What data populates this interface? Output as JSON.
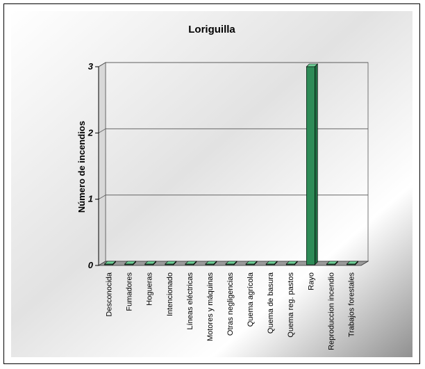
{
  "chart_data": {
    "type": "bar",
    "title": "Loriguilla",
    "ylabel": "Número de incendios",
    "xlabel": "",
    "categories": [
      "Desconocida",
      "Fumadores",
      "Hogueras",
      "Intencionado",
      "Líneas eléctricas",
      "Motores y máquinas",
      "Otras negligencias",
      "Quema agrícola",
      "Quema de basura",
      "Quema reg. pastos",
      "Rayo",
      "Reproduccion incendio",
      "Trabajos forestales"
    ],
    "values": [
      0,
      0,
      0,
      0,
      0,
      0,
      0,
      0,
      0,
      0,
      3,
      0,
      0
    ],
    "ylim": [
      0,
      3
    ],
    "yticks": [
      "0",
      "1",
      "2",
      "3"
    ],
    "grid": true,
    "legend": "none",
    "bar_color": "#2e8b57"
  }
}
